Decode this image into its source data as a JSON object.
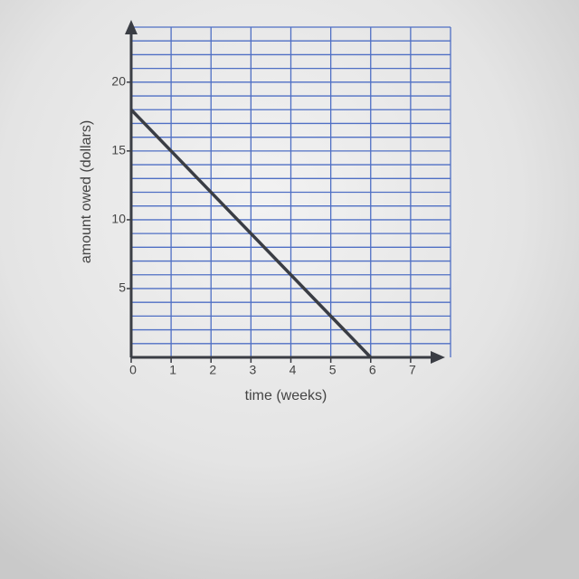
{
  "chart_data": {
    "type": "line",
    "x_label": "time (weeks)",
    "y_label": "amount owed (dollars)",
    "x": [
      0,
      6
    ],
    "series": [
      {
        "values": [
          18,
          0
        ],
        "color": "#3a3d44"
      }
    ],
    "xlim": [
      0,
      8
    ],
    "ylim": [
      0,
      24
    ],
    "xticks": [
      0,
      1,
      2,
      3,
      4,
      5,
      6,
      7
    ],
    "yticks": [
      5,
      10,
      15,
      20
    ],
    "xgrid": [
      1,
      2,
      3,
      4,
      5,
      6,
      7,
      8
    ],
    "ygrid": [
      1,
      2,
      3,
      4,
      5,
      6,
      7,
      8,
      9,
      10,
      11,
      12,
      13,
      14,
      15,
      16,
      17,
      18,
      19,
      20,
      21,
      22,
      23,
      24
    ],
    "grid_color": "#4f6fc4"
  }
}
